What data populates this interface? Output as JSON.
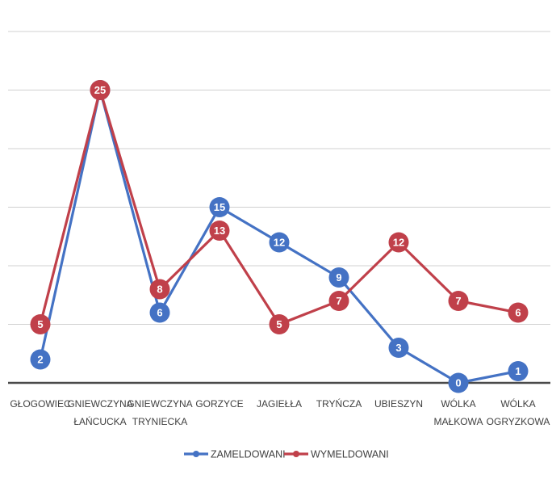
{
  "chart_data": {
    "type": "line",
    "categories": [
      [
        "GŁOGOWIEC"
      ],
      [
        "GNIEWCZYNA",
        "ŁAŃCUCKA"
      ],
      [
        "GNIEWCZYNA",
        "TRYNIECKA"
      ],
      [
        "GORZYCE"
      ],
      [
        "JAGIEŁŁA"
      ],
      [
        "TRYŃCZA"
      ],
      [
        "UBIESZYN"
      ],
      [
        "WÓLKA",
        "MAŁKOWA"
      ],
      [
        "WÓLKA",
        "OGRYZKOWA"
      ]
    ],
    "series": [
      {
        "name": "ZAMELDOWANI",
        "color": "#4472C4",
        "values": [
          2,
          25,
          6,
          15,
          12,
          9,
          3,
          0,
          1
        ]
      },
      {
        "name": "WYMELDOWANI",
        "color": "#C0404A",
        "values": [
          5,
          25,
          8,
          13,
          5,
          7,
          12,
          7,
          6
        ]
      }
    ],
    "ylim": [
      0,
      30
    ],
    "gridlines": [
      5,
      10,
      15,
      20,
      25,
      30
    ],
    "grid": true,
    "legend": "bottom",
    "data_labels": true
  }
}
